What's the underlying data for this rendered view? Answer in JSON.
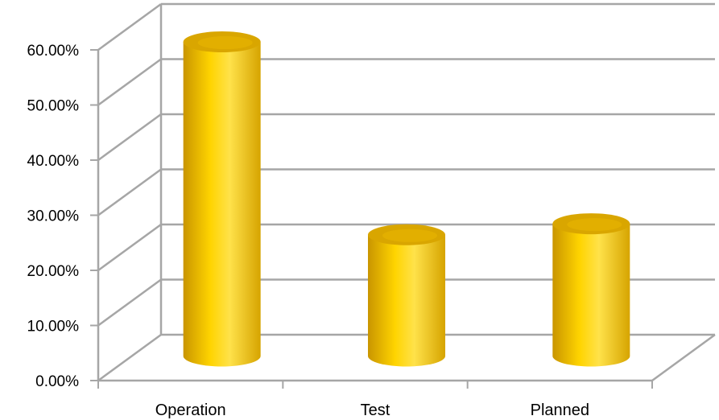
{
  "chart_data": {
    "type": "bar",
    "style": "3d-cylinder",
    "categories": [
      "Operation",
      "Test",
      "Planned"
    ],
    "series": [
      {
        "values": [
          0.57,
          0.22,
          0.24
        ]
      }
    ],
    "ylim": [
      0,
      0.6
    ],
    "yticks": [
      "0.00%",
      "10.00%",
      "20.00%",
      "30.00%",
      "40.00%",
      "50.00%",
      "60.00%"
    ],
    "grid": true,
    "legend": "none",
    "colors": {
      "bar": "#f5c400",
      "bar_light": "#ffe04d",
      "bar_dark": "#c99500",
      "bar_top": "#d9a600",
      "grid": "#a6a6a6"
    }
  }
}
